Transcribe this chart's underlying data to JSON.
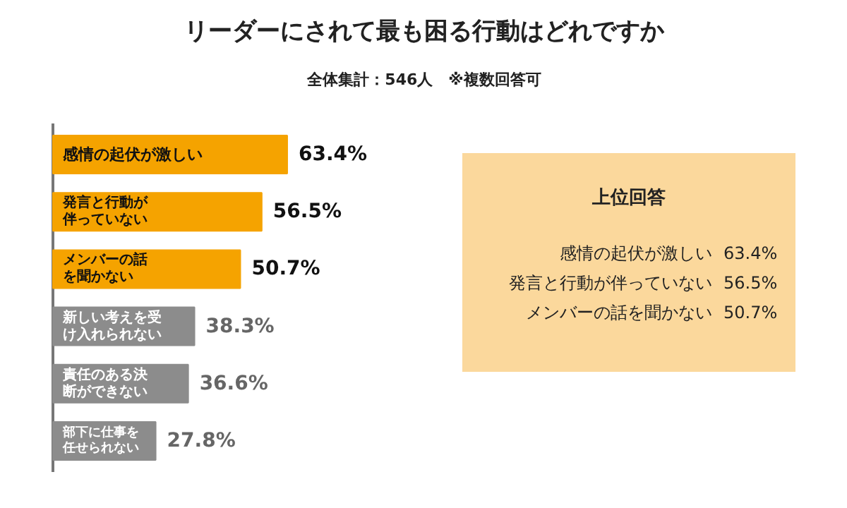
{
  "chart_data": {
    "type": "bar",
    "orientation": "horizontal",
    "title": "リーダーにされて最も困る行動はどれですか",
    "subtitle": "全体集計：546人　※複数回答可",
    "categories": [
      "感情の起伏が激しい",
      "発言と行動が伴っていない",
      "メンバーの話を聞かない",
      "新しい考えを受け入れられない",
      "責任のある決断ができない",
      "部下に仕事を任せられない"
    ],
    "values": [
      63.4,
      56.5,
      50.7,
      38.3,
      36.6,
      27.8
    ],
    "colors": [
      "#f5a300",
      "#f5a300",
      "#f5a300",
      "#8c8c8c",
      "#8c8c8c",
      "#8c8c8c"
    ],
    "value_labels": [
      "63.4%",
      "56.5%",
      "50.7%",
      "38.3%",
      "36.6%",
      "27.8%"
    ],
    "annotations": [
      "上位回答",
      "感情の起伏が激しい 63.4%",
      "発言と行動が伴っていない 56.5%",
      "メンバーの話を聞かない 50.7%"
    ]
  }
}
